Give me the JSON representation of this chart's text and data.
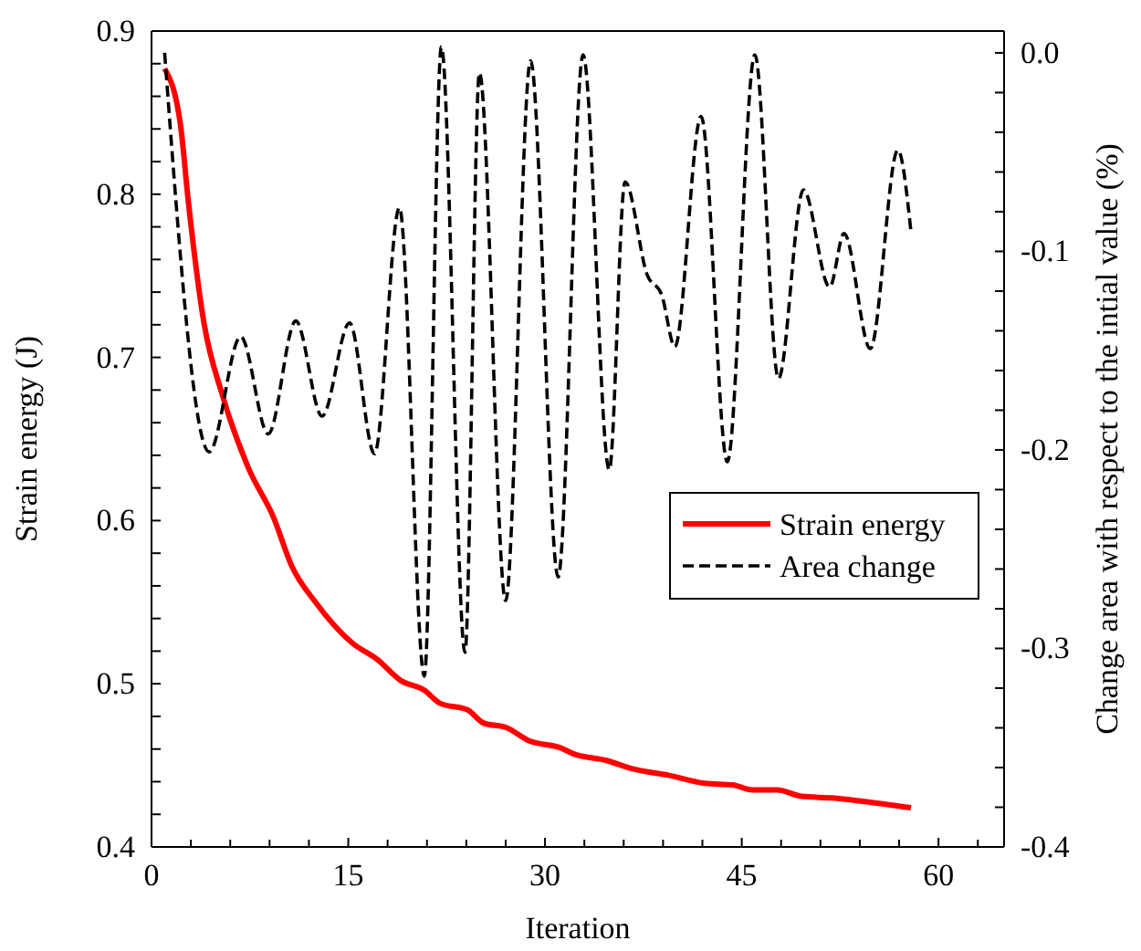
{
  "chart_data": {
    "type": "line",
    "xlabel": "Iteration",
    "ylabel": "Strain energy (J)",
    "y2label": "Change area with respect to the intial value (%)",
    "xlim": [
      0,
      65
    ],
    "ylim": [
      0.4,
      0.9
    ],
    "y2lim": [
      -0.4,
      0.011
    ],
    "xticks": [
      0,
      {
        "value": 3,
        "label": null
      },
      {
        "value": 6,
        "label": null
      },
      {
        "value": 9,
        "label": null
      },
      {
        "value": 12,
        "label": null
      },
      15,
      {
        "value": 18,
        "label": null
      },
      {
        "value": 21,
        "label": null
      },
      {
        "value": 24,
        "label": null
      },
      {
        "value": 27,
        "label": null
      },
      30,
      {
        "value": 33,
        "label": null
      },
      {
        "value": 36,
        "label": null
      },
      {
        "value": 39,
        "label": null
      },
      {
        "value": 42,
        "label": null
      },
      45,
      {
        "value": 48,
        "label": null
      },
      {
        "value": 51,
        "label": null
      },
      {
        "value": 54,
        "label": null
      },
      {
        "value": 57,
        "label": null
      },
      60,
      {
        "value": 63,
        "label": null
      }
    ],
    "yticks": [
      0.4,
      {
        "value": 0.42,
        "label": null
      },
      {
        "value": 0.44,
        "label": null
      },
      {
        "value": 0.46,
        "label": null
      },
      {
        "value": 0.48,
        "label": null
      },
      0.5,
      {
        "value": 0.52,
        "label": null
      },
      {
        "value": 0.54,
        "label": null
      },
      {
        "value": 0.56,
        "label": null
      },
      {
        "value": 0.58,
        "label": null
      },
      0.6,
      {
        "value": 0.62,
        "label": null
      },
      {
        "value": 0.64,
        "label": null
      },
      {
        "value": 0.66,
        "label": null
      },
      {
        "value": 0.68,
        "label": null
      },
      0.7,
      {
        "value": 0.72,
        "label": null
      },
      {
        "value": 0.74,
        "label": null
      },
      {
        "value": 0.76,
        "label": null
      },
      {
        "value": 0.78,
        "label": null
      },
      0.8,
      {
        "value": 0.82,
        "label": null
      },
      {
        "value": 0.84,
        "label": null
      },
      {
        "value": 0.86,
        "label": null
      },
      {
        "value": 0.88,
        "label": null
      },
      0.9
    ],
    "y2ticks": [
      -0.4,
      {
        "value": -0.38,
        "label": null
      },
      {
        "value": -0.36,
        "label": null
      },
      {
        "value": -0.34,
        "label": null
      },
      {
        "value": -0.32,
        "label": null
      },
      -0.3,
      {
        "value": -0.28,
        "label": null
      },
      {
        "value": -0.26,
        "label": null
      },
      {
        "value": -0.24,
        "label": null
      },
      {
        "value": -0.22,
        "label": null
      },
      -0.2,
      {
        "value": -0.18,
        "label": null
      },
      {
        "value": -0.16,
        "label": null
      },
      {
        "value": -0.14,
        "label": null
      },
      {
        "value": -0.12,
        "label": null
      },
      -0.1,
      {
        "value": -0.08,
        "label": null
      },
      {
        "value": -0.06,
        "label": null
      },
      {
        "value": -0.04,
        "label": null
      },
      {
        "value": -0.02,
        "label": null
      },
      {
        "value": 0,
        "label": "0.0"
      }
    ],
    "grid": false,
    "legend": "right",
    "series": [
      {
        "name": "Strain energy",
        "color": "#ff0000",
        "line_style": "solid",
        "x": [
          1,
          2.2,
          2.8,
          4,
          5.4,
          7.4,
          9.3,
          10.7,
          12.5,
          15.3,
          17.2,
          19,
          20.8,
          22,
          24.1,
          25.3,
          27.1,
          28.8,
          31.1,
          32.2,
          34.7,
          36.6,
          39.4,
          42.2,
          44.3,
          45.8,
          47.7,
          49.6,
          51.9,
          54.2,
          57.9
        ],
        "values": [
          0.877,
          0.843,
          0.796,
          0.721,
          0.677,
          0.632,
          0.602,
          0.572,
          0.55,
          0.525,
          0.515,
          0.502,
          0.496,
          0.488,
          0.484,
          0.476,
          0.473,
          0.465,
          0.461,
          0.457,
          0.453,
          0.448,
          0.444,
          0.439,
          0.438,
          0.435,
          0.435,
          0.431,
          0.43,
          0.428,
          0.424
        ]
      },
      {
        "name": "Area change",
        "color": "#000000",
        "line_style": "dashed",
        "axis": "y2",
        "x": [
          1,
          4.4,
          6.8,
          8.9,
          11,
          13,
          15.1,
          17,
          18.9,
          20.8,
          22.1,
          23.9,
          25,
          27,
          28.9,
          31,
          32.9,
          34.9,
          36.1,
          37.8,
          38.9,
          39.9,
          41.9,
          43.9,
          46,
          47.8,
          49.7,
          51.7,
          52.8,
          54.8,
          56.9,
          57.9
        ],
        "values": [
          0,
          -0.201,
          -0.143,
          -0.192,
          -0.135,
          -0.183,
          -0.136,
          -0.202,
          -0.078,
          -0.314,
          0.003,
          -0.302,
          -0.01,
          -0.276,
          -0.004,
          -0.264,
          -0.001,
          -0.21,
          -0.065,
          -0.112,
          -0.122,
          -0.148,
          -0.032,
          -0.206,
          -0.001,
          -0.164,
          -0.069,
          -0.118,
          -0.091,
          -0.149,
          -0.049,
          -0.09
        ]
      }
    ]
  }
}
